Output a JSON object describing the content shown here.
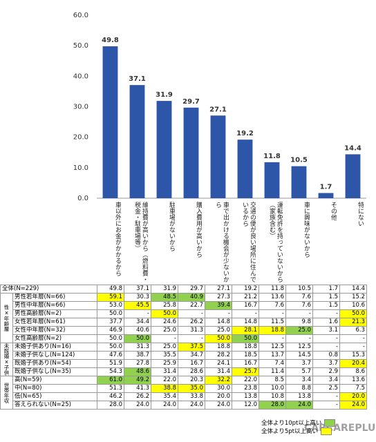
{
  "chart_data": {
    "type": "bar",
    "categories": [
      "車以外にお金がかかるから",
      "維持費が高いから（燃料費・税金・駐車場等）",
      "駐車場がないから",
      "購入費用が高いから",
      "車で出かける機会が少ないから",
      "交通の便が良い場所に住んでいるから",
      "運転免許を持っていないから（家族含む）",
      "車に興味がないから",
      "その他",
      "特にない"
    ],
    "values": [
      49.8,
      37.1,
      31.9,
      29.7,
      27.1,
      19.2,
      11.8,
      10.5,
      1.7,
      14.4
    ],
    "color": "#2d55a8",
    "ylim": [
      0,
      60
    ],
    "yticks": [
      {
        "value": 0,
        "label": "0.0"
      },
      {
        "value": 10,
        "label": "10.0"
      },
      {
        "value": 20,
        "label": "20.0"
      },
      {
        "value": 30,
        "label": "30.0"
      },
      {
        "value": 40,
        "label": "40.0"
      },
      {
        "value": 50,
        "label": "50.0"
      },
      {
        "value": 60,
        "label": "60.0"
      }
    ]
  },
  "table": {
    "total": {
      "label": "全体(N=229)",
      "cells": [
        "49.8",
        "37.1",
        "31.9",
        "29.7",
        "27.1",
        "19.2",
        "11.8",
        "10.5",
        "1.7",
        "14.4"
      ]
    },
    "groups": [
      {
        "label": "性×年齢層",
        "rows": [
          {
            "label": "男性若年層(N=66)",
            "cells": [
              "59.1",
              "30.3",
              "48.5",
              "40.9",
              "27.3",
              "21.2",
              "13.6",
              "7.6",
              "1.5",
              "15.2"
            ],
            "fills": [
              "#ffff00",
              null,
              "#92d050",
              "#92d050",
              null,
              null,
              null,
              null,
              null,
              null
            ]
          },
          {
            "label": "男性中年層(N=66)",
            "cells": [
              "53.0",
              "45.5",
              "25.8",
              "22.7",
              "39.4",
              "16.7",
              "7.6",
              "7.6",
              "1.5",
              "10.6"
            ],
            "fills": [
              null,
              "#ffff00",
              null,
              null,
              "#92d050",
              null,
              null,
              null,
              null,
              null
            ]
          },
          {
            "label": "男性高齢層(N=2)",
            "cells": [
              "50.0",
              "-",
              "50.0",
              "-",
              "-",
              "-",
              "-",
              "-",
              "-",
              "50.0"
            ],
            "fills": [
              null,
              null,
              "#ffff00",
              null,
              null,
              null,
              null,
              null,
              null,
              "#ffff00"
            ]
          },
          {
            "label": "女性若年層(N=61)",
            "cells": [
              "37.7",
              "34.4",
              "24.6",
              "26.2",
              "14.8",
              "14.8",
              "11.5",
              "9.8",
              "1.6",
              "21.3"
            ],
            "fills": [
              null,
              null,
              null,
              null,
              null,
              null,
              null,
              null,
              null,
              "#ffff00"
            ]
          },
          {
            "label": "女性中年層(N=32)",
            "cells": [
              "46.9",
              "40.6",
              "25.0",
              "31.3",
              "25.0",
              "28.1",
              "18.8",
              "25.0",
              "3.1",
              "6.3"
            ],
            "fills": [
              null,
              null,
              null,
              null,
              null,
              "#ffff00",
              "#ffff00",
              "#92d050",
              null,
              null
            ]
          },
          {
            "label": "女性高齢層(N=2)",
            "cells": [
              "50.0",
              "50.0",
              "-",
              "-",
              "50.0",
              "50.0",
              "-",
              "-",
              "-",
              "-"
            ],
            "fills": [
              null,
              "#92d050",
              null,
              null,
              "#ffff00",
              "#92d050",
              null,
              null,
              null,
              null
            ]
          }
        ]
      },
      {
        "label": "未既婚×子供有無",
        "rows": [
          {
            "label": "未婚子供あり(N=16)",
            "cells": [
              "50.0",
              "31.3",
              "25.0",
              "37.5",
              "18.8",
              "18.8",
              "12.5",
              "12.5",
              "-",
              "-"
            ],
            "fills": [
              null,
              null,
              null,
              "#ffff00",
              null,
              null,
              null,
              null,
              null,
              null
            ]
          },
          {
            "label": "未婚子供なし(N=124)",
            "cells": [
              "47.6",
              "38.7",
              "35.5",
              "34.7",
              "28.2",
              "18.5",
              "13.7",
              "14.5",
              "0.8",
              "15.3"
            ],
            "fills": [
              null,
              null,
              null,
              null,
              null,
              null,
              null,
              null,
              null,
              null
            ]
          },
          {
            "label": "既婚子供あり(N=54)",
            "cells": [
              "51.9",
              "27.8",
              "25.9",
              "16.7",
              "24.1",
              "16.7",
              "7.4",
              "3.7",
              "3.7",
              "20.4"
            ],
            "fills": [
              null,
              null,
              null,
              null,
              null,
              null,
              null,
              null,
              null,
              "#ffff00"
            ]
          },
          {
            "label": "既婚子供なし(N=35)",
            "cells": [
              "54.3",
              "48.6",
              "31.4",
              "28.6",
              "31.4",
              "25.7",
              "11.4",
              "5.7",
              "2.9",
              "8.6"
            ],
            "fills": [
              null,
              "#92d050",
              null,
              null,
              null,
              "#ffff00",
              null,
              null,
              null,
              null
            ]
          }
        ]
      },
      {
        "label": "世帯年収",
        "rows": [
          {
            "label": "高(N=59)",
            "cells": [
              "61.0",
              "49.2",
              "22.0",
              "20.3",
              "32.2",
              "22.0",
              "8.5",
              "3.4",
              "3.4",
              "13.6"
            ],
            "fills": [
              "#92d050",
              "#92d050",
              null,
              null,
              "#ffff00",
              null,
              null,
              null,
              null,
              null
            ]
          },
          {
            "label": "中(N=80)",
            "cells": [
              "51.3",
              "41.3",
              "38.8",
              "35.0",
              "30.0",
              "23.8",
              "10.0",
              "8.8",
              "2.5",
              "7.5"
            ],
            "fills": [
              null,
              null,
              "#ffff00",
              "#ffff00",
              null,
              null,
              null,
              null,
              null,
              null
            ]
          },
          {
            "label": "低(N=65)",
            "cells": [
              "46.2",
              "26.2",
              "35.4",
              "33.8",
              "20.0",
              "13.8",
              "10.8",
              "13.8",
              "-",
              "20.0"
            ],
            "fills": [
              null,
              null,
              null,
              null,
              null,
              null,
              null,
              null,
              null,
              "#ffff00"
            ]
          },
          {
            "label": "答えられない(N=25)",
            "cells": [
              "28.0",
              "24.0",
              "24.0",
              "24.0",
              "24.0",
              "12.0",
              "28.0",
              "24.0",
              "-",
              "24.0"
            ],
            "fills": [
              null,
              null,
              null,
              null,
              null,
              null,
              "#92d050",
              "#92d050",
              null,
              "#ffff00"
            ]
          }
        ]
      }
    ]
  },
  "legend": [
    {
      "label": "全体より10pt以上高い",
      "color": "#92d050"
    },
    {
      "label": "全体より5pt以上高い",
      "color": "#ffff00"
    }
  ],
  "watermark": "CARCAREPLUS"
}
